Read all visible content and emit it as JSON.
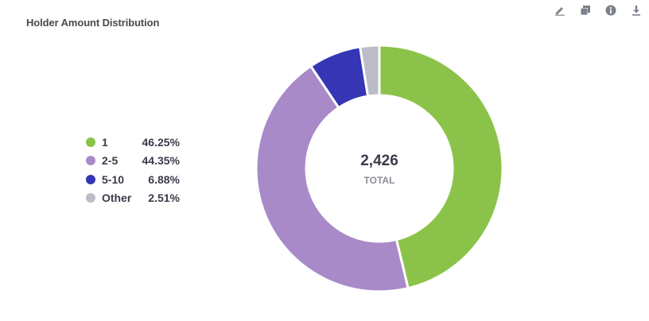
{
  "title": "Holder Amount Distribution",
  "toolbar": {
    "edit_icon": "pencil-icon",
    "copy_icon": "copy-icon",
    "info_icon": "info-icon",
    "download_icon": "download-icon"
  },
  "center": {
    "value": "2,426",
    "label": "TOTAL"
  },
  "chart_data": {
    "type": "pie",
    "variant": "donut",
    "title": "Holder Amount Distribution",
    "total": 2426,
    "total_label": "TOTAL",
    "legend_position": "left",
    "categories": [
      "1",
      "2-5",
      "5-10",
      "Other"
    ],
    "values": [
      46.25,
      44.35,
      6.88,
      2.51
    ],
    "value_labels": [
      "46.25%",
      "44.35%",
      "6.88%",
      "2.51%"
    ],
    "colors": [
      "#8bc34a",
      "#a98ac8",
      "#3535b5",
      "#babdc8"
    ]
  }
}
